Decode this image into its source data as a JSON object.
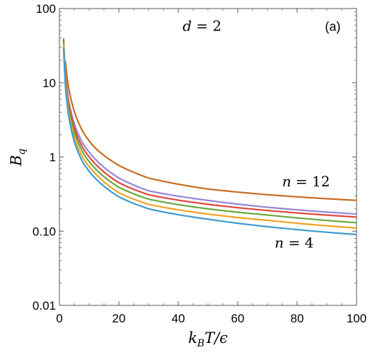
{
  "chart_data": {
    "type": "line",
    "xlabel": "k_BT/ε",
    "ylabel": "B_q",
    "xlim": [
      0,
      100
    ],
    "ylim": [
      0.01,
      100
    ],
    "y_scale": "log",
    "grid": false,
    "x_ticks": [
      0,
      20,
      40,
      60,
      80,
      100
    ],
    "x_tick_labels": [
      "0",
      "20",
      "40",
      "60",
      "80",
      "100"
    ],
    "y_ticks": [
      0.01,
      0.1,
      1,
      10,
      100
    ],
    "y_tick_labels": [
      "0.01",
      "0.10",
      "1",
      "10",
      "100"
    ],
    "annotations": [
      {
        "id": "dim",
        "math": [
          {
            "t": "d",
            "i": true
          },
          {
            "t": " = 2",
            "i": false
          }
        ],
        "at": [
          48,
          50
        ],
        "anchor": "middle"
      },
      {
        "id": "panel",
        "text": "(a)",
        "at": [
          92,
          50
        ],
        "anchor": "middle"
      },
      {
        "id": "n-high",
        "math": [
          {
            "t": "n",
            "i": true
          },
          {
            "t": " = 12",
            "i": false
          }
        ],
        "at": [
          83,
          0.4
        ],
        "anchor": "middle"
      },
      {
        "id": "n-low",
        "math": [
          {
            "t": "n",
            "i": true
          },
          {
            "t": " = 4",
            "i": false
          }
        ],
        "at": [
          79,
          0.06
        ],
        "anchor": "middle"
      }
    ],
    "series": [
      {
        "color": "#c86d1f",
        "x": [
          2,
          3,
          5,
          8,
          12,
          20,
          30,
          50,
          70,
          100
        ],
        "y": [
          19.5,
          9.0,
          4.1,
          2.15,
          1.33,
          0.77,
          0.52,
          0.37,
          0.31,
          0.26
        ]
      },
      {
        "color": "#9486d8",
        "x": [
          1.4,
          2,
          3,
          5,
          8,
          12,
          20,
          30,
          50,
          70,
          100
        ],
        "y": [
          40,
          13.0,
          6.1,
          2.8,
          1.5,
          0.94,
          0.52,
          0.35,
          0.26,
          0.21,
          0.17
        ]
      },
      {
        "color": "#e3463a",
        "x": [
          1.4,
          2,
          3,
          5,
          8,
          12,
          20,
          30,
          50,
          70,
          100
        ],
        "y": [
          38,
          12.0,
          5.4,
          2.45,
          1.3,
          0.81,
          0.45,
          0.31,
          0.23,
          0.19,
          0.155
        ]
      },
      {
        "color": "#66a83c",
        "x": [
          1.4,
          2,
          3,
          5,
          8,
          12,
          20,
          30,
          50,
          70,
          100
        ],
        "y": [
          36,
          11.0,
          4.8,
          2.15,
          1.13,
          0.7,
          0.39,
          0.27,
          0.2,
          0.165,
          0.13
        ]
      },
      {
        "color": "#f2a126",
        "x": [
          1.4,
          2,
          3,
          5,
          8,
          12,
          20,
          30,
          50,
          70,
          100
        ],
        "y": [
          33,
          10.0,
          4.3,
          1.85,
          0.96,
          0.6,
          0.33,
          0.23,
          0.17,
          0.14,
          0.11
        ]
      },
      {
        "color": "#3e9bd0",
        "x": [
          1.4,
          2,
          3,
          5,
          8,
          12,
          20,
          30,
          50,
          70,
          100
        ],
        "y": [
          30,
          9.0,
          3.8,
          1.6,
          0.83,
          0.52,
          0.29,
          0.2,
          0.145,
          0.115,
          0.09
        ]
      }
    ]
  }
}
